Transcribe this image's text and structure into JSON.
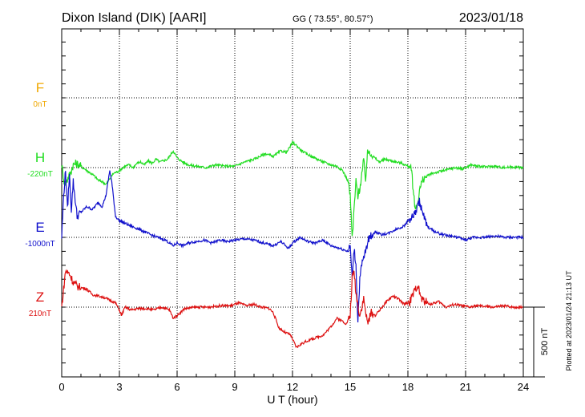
{
  "header": {
    "station": "Dixon Island (DIK)  [AARI]",
    "coords": "GG ( 73.55°,  80.57°)",
    "date": "2023/01/18"
  },
  "plotted_note": "Plotted at 2023/01/24 21:13 UT",
  "chart_data": {
    "type": "line",
    "title": "Dixon Island (DIK)  [AARI]",
    "xlabel": "U T (hour)",
    "xlim": [
      0,
      24
    ],
    "x_ticks": [
      "0",
      "3",
      "6",
      "9",
      "12",
      "15",
      "18",
      "21",
      "24"
    ],
    "scale_bar": "500 nT",
    "grid": true,
    "series": [
      {
        "name": "F",
        "baseline": "0nT",
        "color": "#f0a800",
        "x": [],
        "y": []
      },
      {
        "name": "H",
        "baseline": "-220nT",
        "color": "#22dd22",
        "x": [
          0,
          0.15,
          0.3,
          0.45,
          0.6,
          0.75,
          0.9,
          1.1,
          1.3,
          1.5,
          1.7,
          1.9,
          2.1,
          2.3,
          2.5,
          2.7,
          2.9,
          3.1,
          3.3,
          3.5,
          3.7,
          3.9,
          4.1,
          4.3,
          4.5,
          4.7,
          4.9,
          5.1,
          5.3,
          5.5,
          5.7,
          5.8,
          6.0,
          6.3,
          6.6,
          7.0,
          7.5,
          8.0,
          8.5,
          9.0,
          9.5,
          10.0,
          10.3,
          10.6,
          11.0,
          11.4,
          11.7,
          12.0,
          12.2,
          12.4,
          12.7,
          13.0,
          13.3,
          13.6,
          14.0,
          14.3,
          14.6,
          14.9,
          15.0,
          15.1,
          15.15,
          15.2,
          15.3,
          15.4,
          15.5,
          15.6,
          15.7,
          15.8,
          15.9,
          16.0,
          16.2,
          16.5,
          16.8,
          17.1,
          17.4,
          17.7,
          18.0,
          18.1,
          18.2,
          18.3,
          18.4,
          18.5,
          18.6,
          18.7,
          18.8,
          19.0,
          19.3,
          19.6,
          19.9,
          20.2,
          20.5,
          20.8,
          21.0,
          21.3,
          21.6,
          22.0,
          22.5,
          23.0,
          23.5,
          24.0
        ],
        "y": [
          20,
          -120,
          -80,
          -40,
          20,
          30,
          20,
          0,
          -20,
          -40,
          -60,
          -90,
          -100,
          -120,
          -80,
          -40,
          -30,
          -10,
          10,
          20,
          0,
          30,
          40,
          20,
          50,
          30,
          60,
          40,
          50,
          60,
          100,
          120,
          70,
          40,
          20,
          10,
          0,
          20,
          10,
          10,
          40,
          60,
          80,
          100,
          80,
          120,
          110,
          180,
          160,
          130,
          100,
          80,
          60,
          40,
          20,
          10,
          -20,
          -100,
          -200,
          -500,
          -430,
          -300,
          -100,
          -200,
          -150,
          -50,
          50,
          -80,
          100,
          120,
          80,
          40,
          60,
          50,
          40,
          30,
          10,
          20,
          -40,
          -200,
          -300,
          -260,
          -160,
          -120,
          -80,
          -60,
          -40,
          -30,
          -20,
          -10,
          0,
          -10,
          0,
          20,
          10,
          5,
          10,
          0,
          5,
          0
        ]
      },
      {
        "name": "E",
        "baseline": "-1000nT",
        "color": "#1111cc",
        "x": [
          0,
          0.1,
          0.2,
          0.3,
          0.4,
          0.5,
          0.6,
          0.8,
          1.0,
          1.3,
          1.6,
          1.9,
          2.1,
          2.3,
          2.5,
          2.6,
          2.8,
          3.0,
          3.3,
          3.6,
          4.0,
          4.3,
          4.6,
          5.0,
          5.4,
          5.8,
          6.0,
          6.3,
          6.6,
          7.0,
          7.4,
          7.8,
          8.2,
          8.6,
          9.0,
          9.5,
          10.0,
          10.5,
          11.0,
          11.4,
          11.8,
          12.0,
          12.4,
          12.8,
          13.2,
          13.6,
          14.0,
          14.5,
          14.9,
          15.0,
          15.1,
          15.2,
          15.3,
          15.4,
          15.5,
          15.6,
          15.7,
          15.8,
          15.9,
          16.0,
          16.3,
          16.6,
          17.0,
          17.4,
          17.8,
          18.0,
          18.2,
          18.4,
          18.6,
          18.8,
          19.0,
          19.4,
          19.8,
          20.2,
          20.6,
          21.0,
          21.4,
          22.0,
          22.5,
          23.0,
          23.5,
          24.0
        ],
        "y": [
          0,
          300,
          480,
          200,
          450,
          200,
          400,
          150,
          180,
          220,
          200,
          250,
          220,
          300,
          480,
          400,
          150,
          120,
          100,
          80,
          60,
          40,
          20,
          0,
          -20,
          -60,
          -40,
          -60,
          -40,
          -30,
          -20,
          -40,
          -20,
          -30,
          -20,
          -10,
          -20,
          -40,
          -60,
          -30,
          -80,
          -40,
          0,
          -30,
          -40,
          -20,
          -60,
          -80,
          -100,
          -60,
          -300,
          -80,
          -200,
          -600,
          -300,
          -200,
          -150,
          -100,
          -40,
          0,
          40,
          20,
          30,
          60,
          80,
          120,
          140,
          180,
          260,
          160,
          80,
          40,
          20,
          10,
          0,
          -20,
          0,
          0,
          10,
          0,
          0,
          0
        ]
      },
      {
        "name": "Z",
        "baseline": "210nT",
        "color": "#dd1111",
        "x": [
          0,
          0.2,
          0.4,
          0.6,
          0.8,
          1.0,
          1.3,
          1.6,
          1.9,
          2.2,
          2.5,
          2.8,
          3.0,
          3.1,
          3.3,
          3.6,
          4.0,
          4.4,
          4.8,
          5.2,
          5.6,
          5.8,
          6.0,
          6.4,
          7.0,
          7.6,
          8.2,
          8.8,
          9.2,
          9.6,
          10.0,
          10.4,
          10.8,
          11.0,
          11.3,
          11.6,
          11.9,
          12.2,
          12.5,
          12.8,
          13.2,
          13.6,
          14.0,
          14.3,
          14.6,
          14.8,
          15.0,
          15.1,
          15.2,
          15.3,
          15.5,
          15.7,
          15.9,
          16.1,
          16.3,
          16.6,
          16.9,
          17.2,
          17.5,
          17.8,
          18.1,
          18.3,
          18.5,
          18.7,
          18.9,
          19.2,
          19.6,
          20.0,
          20.4,
          20.8,
          21.2,
          21.6,
          22.0,
          22.5,
          23.0,
          23.5,
          24.0
        ],
        "y": [
          0,
          260,
          240,
          180,
          150,
          140,
          130,
          90,
          80,
          70,
          50,
          30,
          -20,
          -60,
          0,
          -20,
          -10,
          -10,
          -20,
          0,
          -20,
          -80,
          -60,
          -10,
          0,
          0,
          10,
          10,
          30,
          10,
          20,
          0,
          -10,
          -40,
          -150,
          -180,
          -200,
          -290,
          -260,
          -240,
          -220,
          -200,
          -140,
          -80,
          -100,
          -120,
          -60,
          200,
          260,
          100,
          -60,
          60,
          -120,
          -40,
          -60,
          -10,
          40,
          80,
          60,
          20,
          40,
          100,
          160,
          60,
          40,
          20,
          40,
          0,
          20,
          10,
          0,
          10,
          5,
          0,
          10,
          0,
          0
        ]
      }
    ]
  }
}
